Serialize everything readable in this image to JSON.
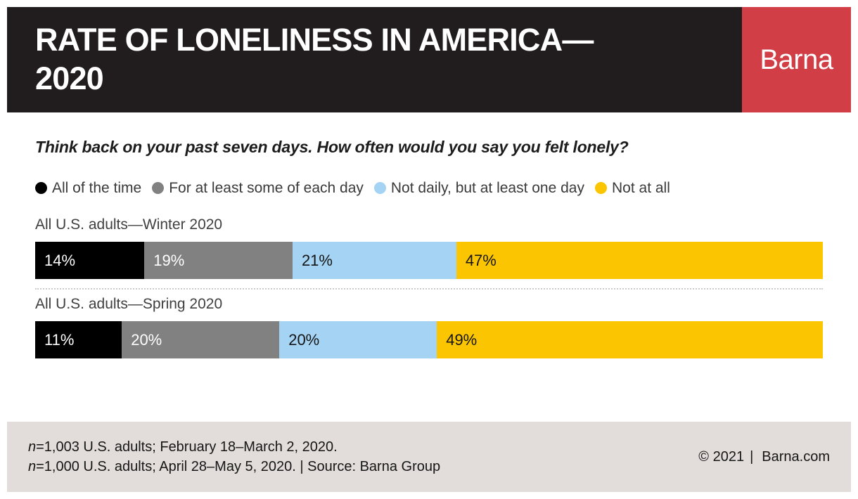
{
  "header": {
    "title_line1": "RATE OF LONELINESS IN AMERICA—",
    "title_line2": "2020",
    "header_bg": "#211D1E",
    "brand": "Barna",
    "brand_bg": "#D23E45"
  },
  "question": "Think back on your past seven days. How often would you say you felt lonely?",
  "legend": [
    {
      "label": "All of the time",
      "color": "#000000"
    },
    {
      "label": "For at least some of each day",
      "color": "#818181"
    },
    {
      "label": "Not daily, but at least one day",
      "color": "#A5D3F3"
    },
    {
      "label": "Not at all",
      "color": "#FBC601"
    }
  ],
  "chart_data": {
    "type": "bar",
    "subtype": "horizontal-stacked",
    "title": "RATE OF LONELINESS IN AMERICA—2020",
    "subtitle": "Think back on your past seven days. How often would you say you felt lonely?",
    "categories": [
      "All U.S. adults—Winter 2020",
      "All U.S. adults—Spring 2020"
    ],
    "series": [
      {
        "name": "All of the time",
        "color": "#000000",
        "label_color": "#ffffff",
        "values": [
          14,
          11
        ]
      },
      {
        "name": "For at least some of each day",
        "color": "#818181",
        "label_color": "#ffffff",
        "values": [
          19,
          20
        ]
      },
      {
        "name": "Not daily, but at least one day",
        "color": "#A5D3F3",
        "label_color": "#151515",
        "values": [
          21,
          20
        ]
      },
      {
        "name": "Not at all",
        "color": "#FBC601",
        "label_color": "#151515",
        "values": [
          47,
          49
        ]
      }
    ],
    "value_suffix": "%",
    "xlim": [
      0,
      100
    ],
    "legend_position": "top",
    "grid": false
  },
  "footer": {
    "bg": "#E2DDDA",
    "notes": [
      {
        "n": "n",
        "rest": "=1,003 U.S. adults; February 18–March 2, 2020."
      },
      {
        "n": "n",
        "rest": "=1,000 U.S. adults; April 28–May 5, 2020. | Source: Barna Group"
      }
    ],
    "copyright": "© 2021",
    "separator": "|",
    "site": "Barna.com"
  }
}
